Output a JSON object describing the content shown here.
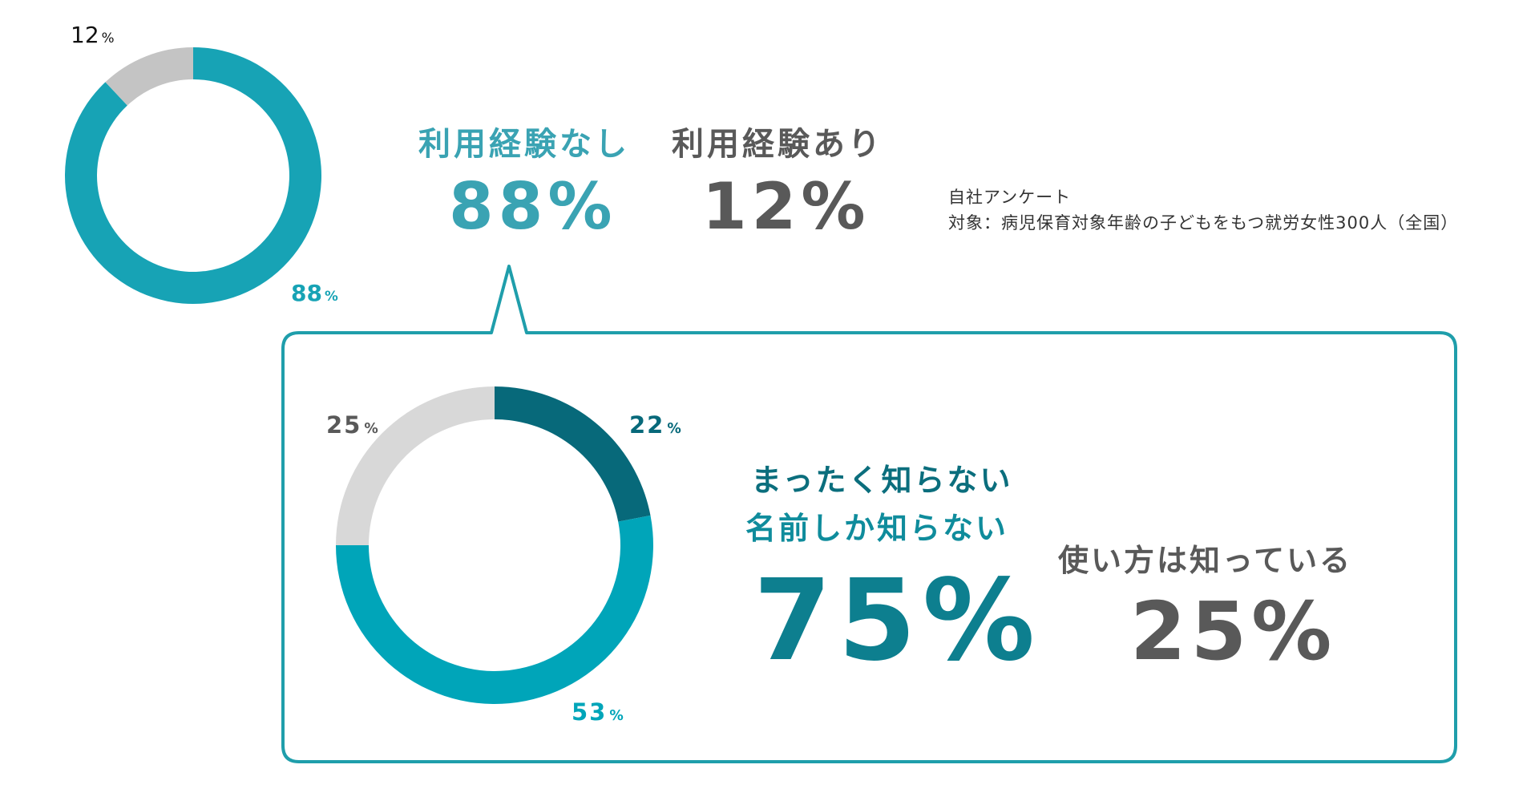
{
  "colors": {
    "teal": "#17a3b5",
    "light_gray": "#c4c4c4",
    "lighter_gray": "#d8d8d8",
    "dark_teal": "#07697a",
    "mid_teal": "#00a5b9",
    "heading_teal": "#3aa3b3",
    "heading_gray": "#595959",
    "frame": "#1f9eab"
  },
  "summary": {
    "no_experience_label": "利用経験なし",
    "no_experience_value": "88%",
    "experience_label": "利用経験あり",
    "experience_value": "12%"
  },
  "source": {
    "line1": "自社アンケート",
    "line2": "対象：病児保育対象年齢の子どもをもつ就労女性300人（全国）"
  },
  "detail": {
    "label_line1": "まったく知らない",
    "label_line2": "名前しか知らない",
    "value": "75%",
    "knows_label": "使い方は知っている",
    "knows_value": "25%"
  },
  "chart_data": [
    {
      "type": "pie",
      "categories": [
        "利用経験なし",
        "利用経験あり"
      ],
      "values": [
        88,
        12
      ],
      "value_labels": [
        "88",
        "12"
      ],
      "unit": "%",
      "colors": [
        "#17a3b5",
        "#c4c4c4"
      ]
    },
    {
      "type": "pie",
      "categories": [
        "まったく知らない",
        "名前しか知らない",
        "使い方は知っている"
      ],
      "values": [
        22,
        53,
        25
      ],
      "value_labels": [
        "22",
        "53",
        "25"
      ],
      "unit": "%",
      "colors": [
        "#07697a",
        "#00a5b9",
        "#d8d8d8"
      ]
    }
  ]
}
